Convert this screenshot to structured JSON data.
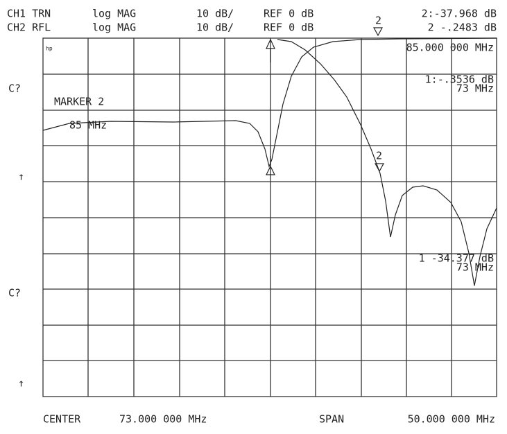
{
  "header": {
    "line1": [
      "CH1 TRN",
      "log MAG",
      "10 dB/",
      "REF 0 dB",
      "2:-37.968 dB"
    ],
    "line2": [
      "CH2 RFL",
      "log MAG",
      "10 dB/",
      "REF 0 dB",
      "2 -.2483 dB"
    ]
  },
  "annotations": {
    "marker_freq": "85.000 000 MHz",
    "ch2_marker1": "1:-.3536 dB",
    "ch2_marker1_freq": "73 MHz",
    "marker_title": "MARKER 2",
    "marker_title_freq": "85 MHz",
    "ch1_marker1": "1 -34.377 dB",
    "ch1_marker1_freq": "73 MHz",
    "hp": "hp",
    "marker_label": "2"
  },
  "side": [
    "C?",
    "↑",
    "C?",
    "↑"
  ],
  "footer": {
    "center": "CENTER",
    "center_value": "73.000 000 MHz",
    "span": "SPAN",
    "span_value": "50.000 000 MHz"
  }
}
